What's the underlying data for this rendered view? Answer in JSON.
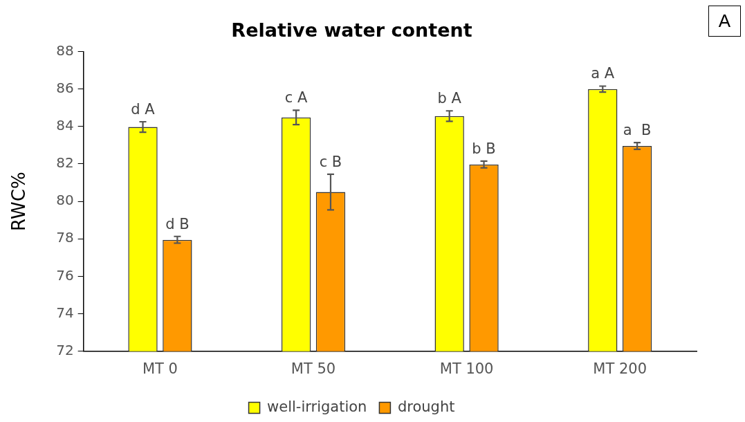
{
  "chart_data": {
    "type": "bar",
    "title": "Relative water content",
    "ylabel": "RWC%",
    "categories": [
      "MT 0",
      "MT 50",
      "MT 100",
      "MT 200"
    ],
    "series": [
      {
        "name": "well-irrigation",
        "color": "#ffff00",
        "values": [
          83.97,
          84.48,
          84.55,
          85.99
        ],
        "errors": [
          0.28,
          0.38,
          0.28,
          0.16
        ],
        "value_labels": [
          "d A",
          "c A",
          "b A",
          "a A"
        ]
      },
      {
        "name": "drought",
        "color": "#ff9900",
        "values": [
          77.95,
          80.5,
          81.97,
          82.96
        ],
        "errors": [
          0.18,
          0.95,
          0.18,
          0.18
        ],
        "value_labels": [
          "d B",
          "c B",
          "b B",
          "a  B"
        ]
      }
    ],
    "ylim": [
      72,
      88
    ],
    "yticks": [
      72,
      74,
      76,
      78,
      80,
      82,
      84,
      86,
      88
    ],
    "grid": false,
    "legend": "bottom",
    "annotations": [
      "A"
    ]
  }
}
